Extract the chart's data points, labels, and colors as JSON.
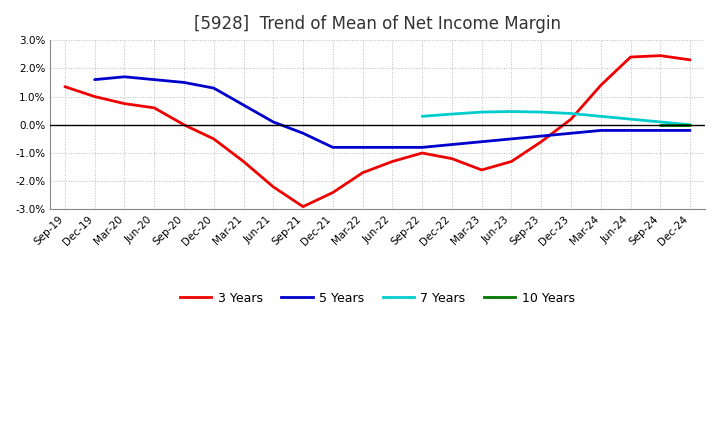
{
  "title": "[5928]  Trend of Mean of Net Income Margin",
  "ylim": [
    -0.03,
    0.03
  ],
  "yticks": [
    -0.03,
    -0.02,
    -0.01,
    0.0,
    0.01,
    0.02,
    0.03
  ],
  "background_color": "#ffffff",
  "plot_bg_color": "#ffffff",
  "grid_color": "#bbbbbb",
  "x_labels": [
    "Sep-19",
    "Dec-19",
    "Mar-20",
    "Jun-20",
    "Sep-20",
    "Dec-20",
    "Mar-21",
    "Jun-21",
    "Sep-21",
    "Dec-21",
    "Mar-22",
    "Jun-22",
    "Sep-22",
    "Dec-22",
    "Mar-23",
    "Jun-23",
    "Sep-23",
    "Dec-23",
    "Mar-24",
    "Jun-24",
    "Sep-24",
    "Dec-24"
  ],
  "series": {
    "3 Years": {
      "color": "#ee0000",
      "data": [
        0.0135,
        0.01,
        0.0075,
        0.006,
        0.0,
        -0.005,
        -0.013,
        -0.022,
        -0.029,
        -0.024,
        -0.017,
        -0.013,
        -0.01,
        -0.012,
        -0.016,
        -0.013,
        -0.006,
        0.002,
        0.014,
        0.024,
        0.0245,
        0.023
      ]
    },
    "5 Years": {
      "color": "#0000cc",
      "data": [
        null,
        0.016,
        0.017,
        0.016,
        0.015,
        0.013,
        0.007,
        0.001,
        -0.003,
        -0.008,
        -0.008,
        -0.008,
        -0.008,
        -0.007,
        -0.006,
        -0.005,
        -0.004,
        -0.003,
        -0.002,
        -0.002,
        -0.002,
        -0.002
      ]
    },
    "7 Years": {
      "color": "#00cccc",
      "data": [
        null,
        null,
        null,
        null,
        null,
        null,
        null,
        null,
        null,
        null,
        null,
        null,
        0.003,
        0.0038,
        0.0045,
        0.0047,
        0.0045,
        0.004,
        0.003,
        0.002,
        0.001,
        0.0
      ]
    },
    "10 Years": {
      "color": "#007700",
      "data": [
        null,
        null,
        null,
        null,
        null,
        null,
        null,
        null,
        null,
        null,
        null,
        null,
        null,
        null,
        null,
        null,
        null,
        null,
        null,
        null,
        0.0,
        0.0
      ]
    }
  },
  "legend_labels": [
    "3 Years",
    "5 Years",
    "7 Years",
    "10 Years"
  ],
  "title_fontsize": 12,
  "tick_fontsize": 7.5,
  "legend_fontsize": 9
}
